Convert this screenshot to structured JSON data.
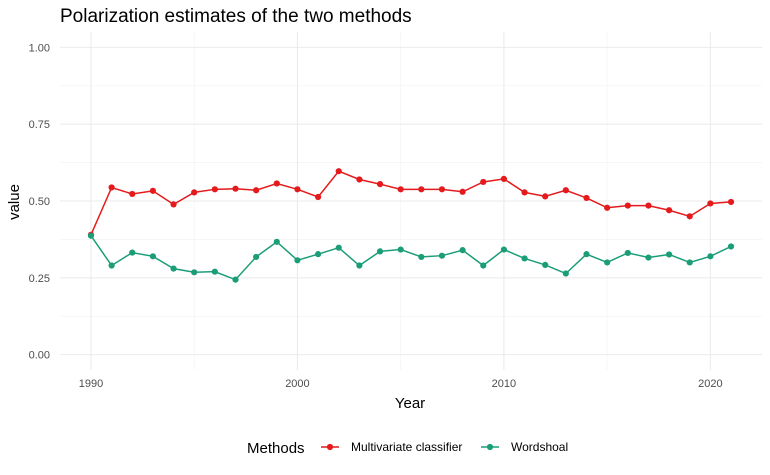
{
  "chart_data": {
    "type": "line",
    "title": "Polarization estimates of the two methods",
    "xlabel": "Year",
    "ylabel": "value",
    "xlim": [
      1988.5,
      2022.5
    ],
    "ylim": [
      -0.05,
      1.05
    ],
    "x_ticks": [
      1990,
      2000,
      2010,
      2020
    ],
    "y_ticks": [
      0.0,
      0.25,
      0.5,
      0.75,
      1.0
    ],
    "x_tick_labels": [
      "1990",
      "2000",
      "2010",
      "2020"
    ],
    "y_tick_labels": [
      "0.00",
      "0.25",
      "0.50",
      "0.75",
      "1.00"
    ],
    "grid": true,
    "legend_placement": "bottom",
    "legend_title": "Methods",
    "x": [
      1990,
      1991,
      1992,
      1993,
      1994,
      1995,
      1996,
      1997,
      1998,
      1999,
      2000,
      2001,
      2002,
      2003,
      2004,
      2005,
      2006,
      2007,
      2008,
      2009,
      2010,
      2011,
      2012,
      2013,
      2014,
      2015,
      2016,
      2017,
      2018,
      2019,
      2020,
      2021
    ],
    "series": [
      {
        "name": "Multivariate classifier",
        "color": "#e41a1c",
        "values": [
          0.39,
          0.544,
          0.523,
          0.533,
          0.489,
          0.528,
          0.538,
          0.54,
          0.535,
          0.557,
          0.538,
          0.513,
          0.597,
          0.57,
          0.555,
          0.538,
          0.538,
          0.538,
          0.53,
          0.562,
          0.572,
          0.528,
          0.515,
          0.535,
          0.51,
          0.478,
          0.485,
          0.485,
          0.47,
          0.45,
          0.492,
          0.497
        ]
      },
      {
        "name": "Wordshoal",
        "color": "#1b9e77",
        "values": [
          0.387,
          0.29,
          0.332,
          0.32,
          0.28,
          0.268,
          0.27,
          0.244,
          0.318,
          0.367,
          0.307,
          0.327,
          0.348,
          0.29,
          0.336,
          0.342,
          0.318,
          0.322,
          0.34,
          0.29,
          0.342,
          0.313,
          0.292,
          0.264,
          0.327,
          0.3,
          0.331,
          0.316,
          0.326,
          0.3,
          0.32,
          0.352
        ]
      }
    ]
  }
}
